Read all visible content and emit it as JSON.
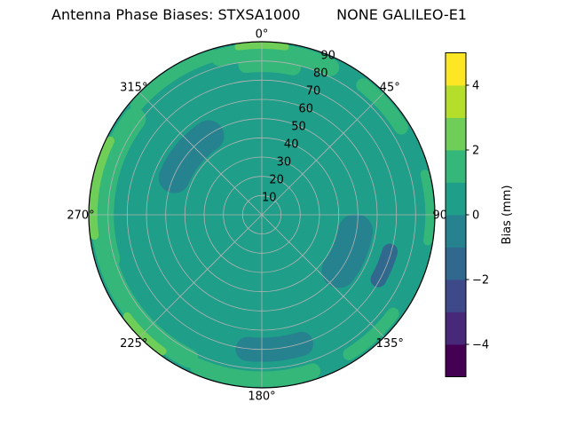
{
  "chart_data": {
    "type": "polar_contour",
    "title": "Antenna Phase Biases: STXSA1000        NONE GALILEO-E1",
    "colormap": "viridis",
    "value_range_mm": [
      -5,
      5
    ],
    "level_step_mm": 1,
    "band_colors": [
      "#440154",
      "#482878",
      "#3e4989",
      "#31688e",
      "#26828e",
      "#1f9e89",
      "#35b779",
      "#6ece58",
      "#b5de2b",
      "#fde725"
    ],
    "grid": {
      "color": "#b3b3b3",
      "rings": 9,
      "spoke_step_deg": 45
    },
    "outline_color": "#000000",
    "theta_ticks": [
      {
        "angle_deg": 0,
        "label": "0°"
      },
      {
        "angle_deg": 45,
        "label": "45°"
      },
      {
        "angle_deg": 90,
        "label": "90°"
      },
      {
        "angle_deg": 135,
        "label": "135°"
      },
      {
        "angle_deg": 180,
        "label": "180°"
      },
      {
        "angle_deg": 225,
        "label": "225°"
      },
      {
        "angle_deg": 270,
        "label": "270°"
      },
      {
        "angle_deg": 315,
        "label": "315°"
      }
    ],
    "r_ticks": {
      "values": [
        10,
        20,
        30,
        40,
        50,
        60,
        70,
        80,
        90
      ],
      "max": 90,
      "label_azimuth_deg": 22.5
    },
    "base_value_mm": 0.3,
    "regions": [
      {
        "az0": 100,
        "az1": 126,
        "r": 0.55,
        "w": 0.2,
        "value_mm": -0.5
      },
      {
        "az0": 163,
        "az1": 186,
        "r": 0.78,
        "w": 0.14,
        "value_mm": -0.5
      },
      {
        "az0": 293,
        "az1": 326,
        "r": 0.55,
        "w": 0.18,
        "value_mm": -0.5
      },
      {
        "az0": -15,
        "az1": 25,
        "r": 0.94,
        "w": 0.1,
        "value_mm": 1.5
      },
      {
        "az0": -6,
        "az1": 12,
        "r": 0.87,
        "w": 0.09,
        "value_mm": 1.5
      },
      {
        "az0": 38,
        "az1": 58,
        "r": 0.95,
        "w": 0.08,
        "value_mm": 1.5
      },
      {
        "az0": 76,
        "az1": 99,
        "r": 0.97,
        "w": 0.05,
        "value_mm": 1.5
      },
      {
        "az0": 127,
        "az1": 148,
        "r": 0.95,
        "w": 0.07,
        "value_mm": 1.5
      },
      {
        "az0": 162,
        "az1": 203,
        "r": 0.95,
        "w": 0.09,
        "value_mm": 1.5
      },
      {
        "az0": 207,
        "az1": 253,
        "r": 0.93,
        "w": 0.11,
        "value_mm": 1.5
      },
      {
        "az0": 254,
        "az1": 307,
        "r": 0.92,
        "w": 0.13,
        "value_mm": 1.5
      },
      {
        "az0": 311,
        "az1": 343,
        "r": 0.96,
        "w": 0.07,
        "value_mm": 1.5
      },
      {
        "az0": 263,
        "az1": 296,
        "r": 0.975,
        "w": 0.05,
        "value_mm": 2.5
      },
      {
        "az0": 216,
        "az1": 233,
        "r": 0.975,
        "w": 0.045,
        "value_mm": 2.5
      },
      {
        "az0": -8,
        "az1": 8,
        "r": 0.98,
        "w": 0.04,
        "value_mm": 2.5
      },
      {
        "az0": 106,
        "az1": 119,
        "r": 0.77,
        "w": 0.09,
        "value_mm": -1.5
      }
    ],
    "colorbar": {
      "label": "Bias (mm)",
      "tick_values": [
        -4,
        -2,
        0,
        2,
        4
      ],
      "tick_labels": [
        "−4",
        "−2",
        "0",
        "2",
        "4"
      ]
    }
  }
}
